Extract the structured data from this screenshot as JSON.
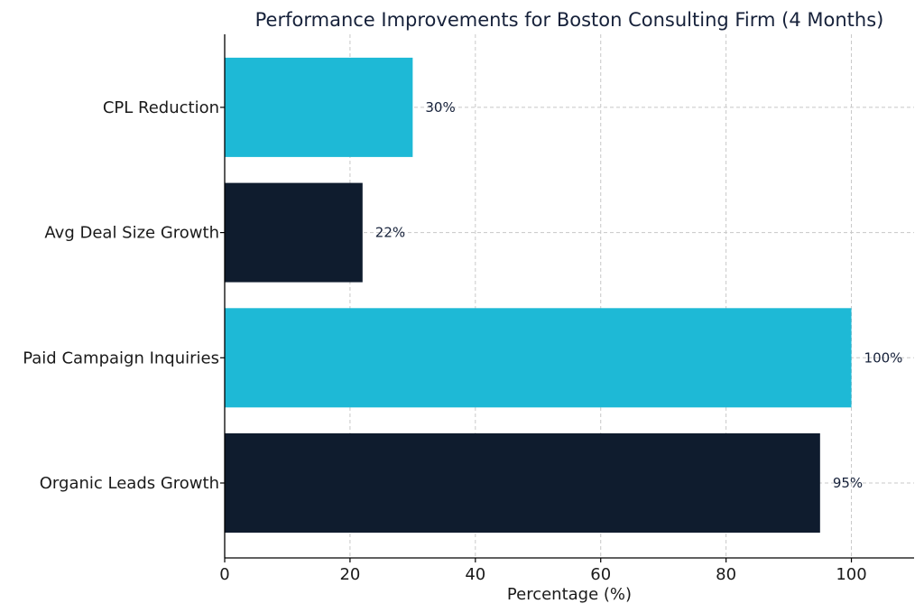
{
  "chart_data": {
    "type": "bar",
    "orientation": "horizontal",
    "title": "Performance Improvements for Boston Consulting Firm (4 Months)",
    "xlabel": "Percentage (%)",
    "ylabel": "",
    "categories": [
      "Organic Leads Growth",
      "Paid Campaign Inquiries",
      "Avg Deal Size Growth",
      "CPL Reduction"
    ],
    "values": [
      95,
      100,
      22,
      30
    ],
    "value_labels": [
      "95%",
      "100%",
      "22%",
      "30%"
    ],
    "bar_colors": [
      "#0f1c2e",
      "#1eb9d6",
      "#0f1c2e",
      "#1eb9d6"
    ],
    "xlim": [
      0,
      110
    ],
    "xticks": [
      0,
      20,
      40,
      60,
      80,
      100
    ],
    "grid": true
  }
}
